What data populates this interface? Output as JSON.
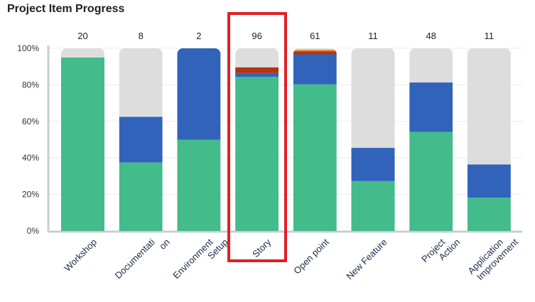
{
  "title": "Project Item Progress",
  "colors": {
    "green": "#43bb8b",
    "blue": "#3163bb",
    "red": "#b5330f",
    "orange": "#d8741d",
    "grey": "#dddddd",
    "highlight": "#e41e26"
  },
  "highlighted_category": "Story",
  "chart_data": {
    "type": "bar",
    "stacked": true,
    "title": "Project Item Progress",
    "xlabel": "",
    "ylabel": "",
    "ylim": [
      0,
      100
    ],
    "y_ticks": [
      "0%",
      "20%",
      "40%",
      "60%",
      "80%",
      "100%"
    ],
    "categories": [
      {
        "label": "Workshop",
        "lines": [
          "Workshop"
        ],
        "count": "20"
      },
      {
        "label": "Documentation",
        "lines": [
          "Documentati",
          "on"
        ],
        "count": "8"
      },
      {
        "label": "Environment Setup",
        "lines": [
          "Environment",
          "Setup"
        ],
        "count": "2"
      },
      {
        "label": "Story",
        "lines": [
          "Story"
        ],
        "count": "96"
      },
      {
        "label": "Open point",
        "lines": [
          "Open point"
        ],
        "count": "61"
      },
      {
        "label": "New Feature",
        "lines": [
          "New Feature"
        ],
        "count": "11"
      },
      {
        "label": "Project Action",
        "lines": [
          "Project",
          "Action"
        ],
        "count": "48"
      },
      {
        "label": "Application Improvement",
        "lines": [
          "Application",
          "Improvement"
        ],
        "count": "11"
      }
    ],
    "series": [
      {
        "color_key": "green",
        "values": [
          95,
          37.5,
          50,
          84.4,
          80.3,
          27.3,
          54.2,
          18.2
        ]
      },
      {
        "color_key": "blue",
        "values": [
          0,
          25,
          50,
          2.1,
          16.4,
          18.2,
          27.1,
          18.2
        ]
      },
      {
        "color_key": "red",
        "values": [
          0,
          0,
          0,
          3.1,
          1.6,
          0,
          0,
          0
        ]
      },
      {
        "color_key": "orange",
        "values": [
          0,
          0,
          0,
          0,
          0.8,
          0,
          0,
          0
        ]
      },
      {
        "color_key": "grey",
        "values": [
          5,
          37.5,
          0,
          10.4,
          0.9,
          54.5,
          18.7,
          63.6
        ]
      }
    ]
  }
}
